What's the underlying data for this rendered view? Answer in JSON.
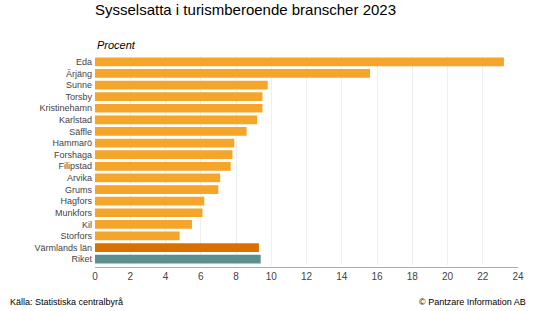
{
  "chart_data": {
    "type": "bar",
    "orientation": "horizontal",
    "title": "Sysselsatta i turismberoende branscher 2023",
    "subtitle": "Procent",
    "categories": [
      "Eda",
      "Ärjäng",
      "Sunne",
      "Torsby",
      "Kristinehamn",
      "Karlstad",
      "Säffle",
      "Hammarö",
      "Forshaga",
      "Filipstad",
      "Arvika",
      "Grums",
      "Hagfors",
      "Munkfors",
      "Kil",
      "Storfors",
      "Värmlands län",
      "Riket"
    ],
    "values": [
      23.2,
      15.6,
      9.8,
      9.5,
      9.5,
      9.2,
      8.6,
      7.9,
      7.8,
      7.7,
      7.1,
      7.0,
      6.2,
      6.1,
      5.5,
      4.8,
      9.3,
      9.4
    ],
    "colors": [
      "#f5a52a",
      "#f5a52a",
      "#f5a52a",
      "#f5a52a",
      "#f5a52a",
      "#f5a52a",
      "#f5a52a",
      "#f5a52a",
      "#f5a52a",
      "#f5a52a",
      "#f5a52a",
      "#f5a52a",
      "#f5a52a",
      "#f5a52a",
      "#f5a52a",
      "#f5a52a",
      "#d97000",
      "#5b9090"
    ],
    "xlim": [
      0,
      24
    ],
    "xticks": [
      0,
      2,
      4,
      6,
      8,
      10,
      12,
      14,
      16,
      18,
      20,
      22,
      24
    ],
    "grid": true,
    "annotations": [
      "Källa: Statistiska centralbyrå",
      "© Pantzare Information AB"
    ]
  }
}
